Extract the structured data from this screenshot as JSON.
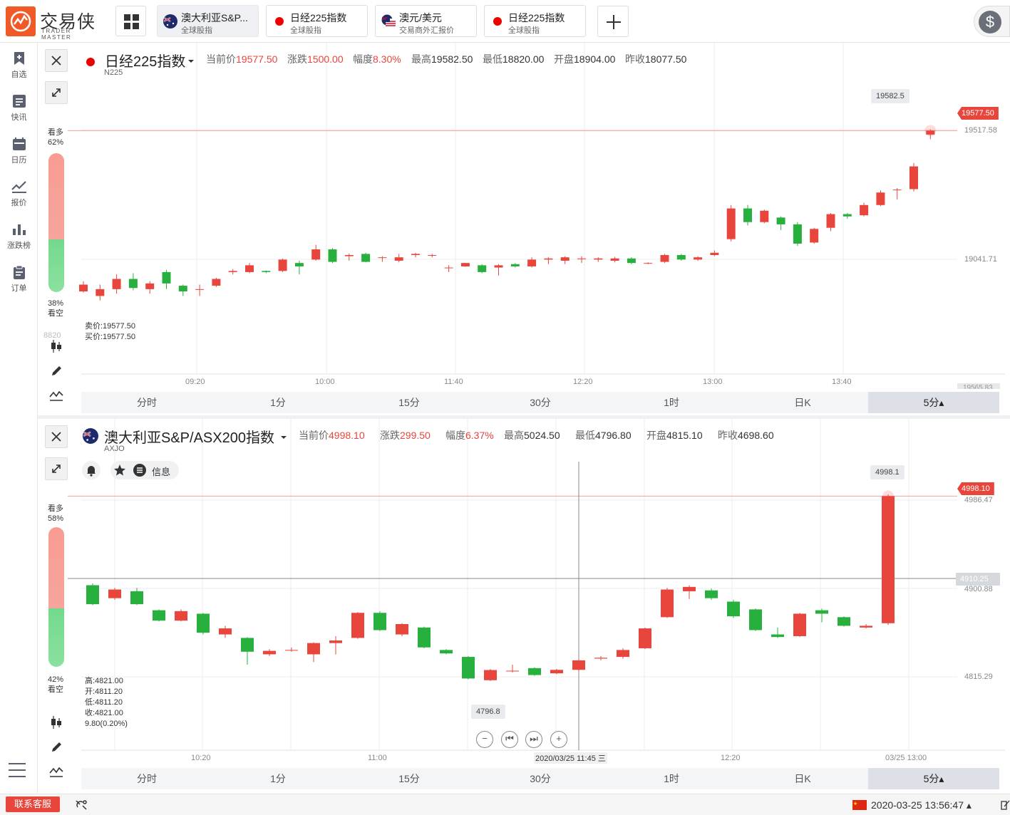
{
  "brand": {
    "name_cn": "交易侠",
    "name_en": "TRADER MASTER",
    "accent": "#f05a28"
  },
  "tabs": [
    {
      "name": "澳大利亚S&P...",
      "sub": "全球股指",
      "icon": "au-flag-icon",
      "active": true
    },
    {
      "name": "日经225指数",
      "sub": "全球股指",
      "icon": "red-dot-icon",
      "active": false
    },
    {
      "name": "澳元/美元",
      "sub": "交易商外汇报价",
      "icon": "au-us-flag-icon",
      "active": false
    },
    {
      "name": "日经225指数",
      "sub": "全球股指",
      "icon": "red-dot-icon",
      "active": false
    }
  ],
  "sidebar": {
    "items": [
      {
        "label": "自选",
        "icon": "bookmark-add-icon"
      },
      {
        "label": "快讯",
        "icon": "news-list-icon"
      },
      {
        "label": "日历",
        "icon": "calendar-icon"
      },
      {
        "label": "报价",
        "icon": "line-chart-icon"
      },
      {
        "label": "涨跌榜",
        "icon": "bar-chart-icon"
      },
      {
        "label": "订单",
        "icon": "clipboard-icon"
      }
    ]
  },
  "periods": [
    "分时",
    "1分",
    "15分",
    "30分",
    "1时",
    "日K",
    "5分▴"
  ],
  "panel1": {
    "name": "日经225指数",
    "code": "N225",
    "stats": [
      {
        "label": "当前价",
        "value": "19577.50",
        "red": true
      },
      {
        "label": "涨跌",
        "value": "1500.00",
        "red": true
      },
      {
        "label": "幅度",
        "value": "8.30%",
        "red": true
      },
      {
        "label": "最高",
        "value": "19582.50",
        "red": false
      },
      {
        "label": "最低",
        "value": "18820.00",
        "red": false
      },
      {
        "label": "开盘",
        "value": "18904.00",
        "red": false
      },
      {
        "label": "昨收",
        "value": "18077.50",
        "red": false
      }
    ],
    "bull_label": "看多",
    "bull_pct": "62%",
    "bull_value": 62,
    "bear_label": "看空",
    "bear_pct": "38%",
    "bear_value": 38,
    "quote": {
      "sell": "卖价:19577.50",
      "buy": "买价:19577.50"
    },
    "current_tag": "19577.50",
    "peak_label": "19582.5",
    "left_edge_label": "8820",
    "bottom_edge_label": "19565.83",
    "x_ticks": [
      "09:20",
      "10:00",
      "11:40",
      "12:20",
      "13:00",
      "13:40"
    ],
    "y_ticks": [
      "19517.58",
      "19041.71"
    ]
  },
  "panel2": {
    "name": "澳大利亚S&P/ASX200指数",
    "code": "AXJO",
    "stats": [
      {
        "label": "当前价",
        "value": "4998.10",
        "red": true
      },
      {
        "label": "涨跌",
        "value": "299.50",
        "red": true
      },
      {
        "label": "幅度",
        "value": "6.37%",
        "red": true
      },
      {
        "label": "最高",
        "value": "5024.50",
        "red": false
      },
      {
        "label": "最低",
        "value": "4796.80",
        "red": false
      },
      {
        "label": "开盘",
        "value": "4815.10",
        "red": false
      },
      {
        "label": "昨收",
        "value": "4698.60",
        "red": false
      }
    ],
    "info_label": "信息",
    "bull_label": "看多",
    "bull_pct": "58%",
    "bull_value": 58,
    "bear_label": "看空",
    "bear_pct": "42%",
    "bear_value": 42,
    "ohlc": [
      "高:4821.00",
      "开:4811.20",
      "低:4811.20",
      "收:4821.00",
      "9.80(0.20%)"
    ],
    "current_tag": "4998.10",
    "crosshair_tag": "4910.25",
    "peak_label": "4998.1",
    "low_label": "4796.8",
    "x_ticks": [
      "10:20",
      "11:00",
      "12:20",
      "03/25 13:00"
    ],
    "crosshair_time": "2020/03/25 11:45 三",
    "y_ticks": [
      "4986.47",
      "4900.88",
      "4815.29"
    ]
  },
  "status": {
    "contact": "联系客服",
    "datetime": "2020-03-25 13:56:47 ▴"
  },
  "colors": {
    "up": "#e8453c",
    "down": "#28b03e"
  },
  "chart_data": [
    {
      "type": "candlestick",
      "title": "日经225指数",
      "x": [
        "09:20",
        "10:00",
        "11:40",
        "12:20",
        "13:00",
        "13:40"
      ],
      "ylim": [
        18820,
        19660
      ],
      "candles": [
        {
          "o": 18870,
          "c": 18900,
          "h": 18915,
          "l": 18865
        },
        {
          "o": 18850,
          "c": 18880,
          "h": 18900,
          "l": 18830
        },
        {
          "o": 18880,
          "c": 18925,
          "h": 18945,
          "l": 18860
        },
        {
          "o": 18925,
          "c": 18885,
          "h": 18950,
          "l": 18875
        },
        {
          "o": 18880,
          "c": 18905,
          "h": 18915,
          "l": 18860
        },
        {
          "o": 18955,
          "c": 18905,
          "h": 18965,
          "l": 18880
        },
        {
          "o": 18895,
          "c": 18870,
          "h": 18900,
          "l": 18850
        },
        {
          "o": 18880,
          "c": 18880,
          "h": 18900,
          "l": 18850
        },
        {
          "o": 18895,
          "c": 18925,
          "h": 18930,
          "l": 18890
        },
        {
          "o": 18955,
          "c": 18960,
          "h": 18968,
          "l": 18945
        },
        {
          "o": 18955,
          "c": 18985,
          "h": 18995,
          "l": 18950
        },
        {
          "o": 18960,
          "c": 18955,
          "h": 18962,
          "l": 18950
        },
        {
          "o": 18960,
          "c": 19010,
          "h": 19015,
          "l": 18955
        },
        {
          "o": 18995,
          "c": 18980,
          "h": 19005,
          "l": 18945
        },
        {
          "o": 19010,
          "c": 19055,
          "h": 19075,
          "l": 19005
        },
        {
          "o": 19055,
          "c": 19000,
          "h": 19060,
          "l": 18995
        },
        {
          "o": 19025,
          "c": 19030,
          "h": 19037,
          "l": 19005
        },
        {
          "o": 19035,
          "c": 19000,
          "h": 19040,
          "l": 18998
        },
        {
          "o": 19020,
          "c": 19020,
          "h": 19025,
          "l": 19000
        },
        {
          "o": 19005,
          "c": 19020,
          "h": 19035,
          "l": 18998
        },
        {
          "o": 19030,
          "c": 19035,
          "h": 19040,
          "l": 19020
        },
        {
          "o": 19030,
          "c": 19030,
          "h": 19035,
          "l": 19020
        },
        {
          "o": 18975,
          "c": 18975,
          "h": 18985,
          "l": 18955
        },
        {
          "o": 18980,
          "c": 18995,
          "h": 18995,
          "l": 18978
        },
        {
          "o": 18985,
          "c": 18955,
          "h": 18990,
          "l": 18950
        },
        {
          "o": 18975,
          "c": 18985,
          "h": 18990,
          "l": 18940
        },
        {
          "o": 18990,
          "c": 18980,
          "h": 18995,
          "l": 18975
        },
        {
          "o": 18980,
          "c": 19010,
          "h": 19020,
          "l": 18975
        },
        {
          "o": 19010,
          "c": 19015,
          "h": 19020,
          "l": 18990
        },
        {
          "o": 19005,
          "c": 19020,
          "h": 19025,
          "l": 18990
        },
        {
          "o": 19015,
          "c": 19015,
          "h": 19025,
          "l": 18995
        },
        {
          "o": 19010,
          "c": 19015,
          "h": 19020,
          "l": 19000
        },
        {
          "o": 19005,
          "c": 19015,
          "h": 19022,
          "l": 18998
        },
        {
          "o": 19015,
          "c": 18995,
          "h": 19020,
          "l": 18990
        },
        {
          "o": 18995,
          "c": 18995,
          "h": 18998,
          "l": 18990
        },
        {
          "o": 19000,
          "c": 19030,
          "h": 19035,
          "l": 18995
        },
        {
          "o": 19030,
          "c": 19010,
          "h": 19035,
          "l": 19005
        },
        {
          "o": 19010,
          "c": 19020,
          "h": 19025,
          "l": 19005
        },
        {
          "o": 19030,
          "c": 19040,
          "h": 19050,
          "l": 19025
        },
        {
          "o": 19100,
          "c": 19235,
          "h": 19250,
          "l": 19090
        },
        {
          "o": 19235,
          "c": 19175,
          "h": 19250,
          "l": 19160
        },
        {
          "o": 19175,
          "c": 19225,
          "h": 19230,
          "l": 19170
        },
        {
          "o": 19195,
          "c": 19165,
          "h": 19200,
          "l": 19140
        },
        {
          "o": 19165,
          "c": 19080,
          "h": 19175,
          "l": 19070
        },
        {
          "o": 19085,
          "c": 19145,
          "h": 19150,
          "l": 19080
        },
        {
          "o": 19150,
          "c": 19210,
          "h": 19215,
          "l": 19135
        },
        {
          "o": 19210,
          "c": 19200,
          "h": 19215,
          "l": 19190
        },
        {
          "o": 19205,
          "c": 19250,
          "h": 19260,
          "l": 19200
        },
        {
          "o": 19250,
          "c": 19305,
          "h": 19315,
          "l": 19245
        },
        {
          "o": 19315,
          "c": 19318,
          "h": 19325,
          "l": 19275
        },
        {
          "o": 19320,
          "c": 19420,
          "h": 19435,
          "l": 19310
        },
        {
          "o": 19560,
          "c": 19577.5,
          "h": 19582.5,
          "l": 19540
        }
      ]
    },
    {
      "type": "candlestick",
      "title": "澳大利亚S&P/ASX200指数",
      "x": [
        "10:20",
        "11:00",
        "12:20",
        "03/25 13:00"
      ],
      "ylim": [
        4770,
        5010
      ],
      "candles": [
        {
          "o": 4895,
          "c": 4873,
          "h": 4897,
          "l": 4872
        },
        {
          "o": 4880,
          "c": 4890,
          "h": 4892,
          "l": 4878
        },
        {
          "o": 4888,
          "c": 4873,
          "h": 4892,
          "l": 4872
        },
        {
          "o": 4866,
          "c": 4854,
          "h": 4867,
          "l": 4853
        },
        {
          "o": 4854,
          "c": 4865,
          "h": 4867,
          "l": 4853
        },
        {
          "o": 4862,
          "c": 4840,
          "h": 4863,
          "l": 4838
        },
        {
          "o": 4838,
          "c": 4845,
          "h": 4848,
          "l": 4834
        },
        {
          "o": 4834,
          "c": 4818,
          "h": 4835,
          "l": 4803
        },
        {
          "o": 4815,
          "c": 4819,
          "h": 4821,
          "l": 4813
        },
        {
          "o": 4820,
          "c": 4820,
          "h": 4823,
          "l": 4818
        },
        {
          "o": 4815,
          "c": 4828,
          "h": 4829,
          "l": 4806
        },
        {
          "o": 4828,
          "c": 4831,
          "h": 4836,
          "l": 4815
        },
        {
          "o": 4834,
          "c": 4863,
          "h": 4864,
          "l": 4833
        },
        {
          "o": 4863,
          "c": 4843,
          "h": 4865,
          "l": 4842
        },
        {
          "o": 4838,
          "c": 4850,
          "h": 4851,
          "l": 4836
        },
        {
          "o": 4846,
          "c": 4823,
          "h": 4847,
          "l": 4822
        },
        {
          "o": 4820,
          "c": 4816,
          "h": 4821,
          "l": 4815
        },
        {
          "o": 4812,
          "c": 4787,
          "h": 4813,
          "l": 4786
        },
        {
          "o": 4785,
          "c": 4796.8,
          "h": 4798,
          "l": 4784
        },
        {
          "o": 4796,
          "c": 4796,
          "h": 4803,
          "l": 4794
        },
        {
          "o": 4799,
          "c": 4791,
          "h": 4800,
          "l": 4790
        },
        {
          "o": 4793,
          "c": 4797,
          "h": 4798,
          "l": 4792
        },
        {
          "o": 4797,
          "c": 4808,
          "h": 4809,
          "l": 4796
        },
        {
          "o": 4810,
          "c": 4811,
          "h": 4813,
          "l": 4808
        },
        {
          "o": 4812,
          "c": 4820,
          "h": 4822,
          "l": 4810
        },
        {
          "o": 4822,
          "c": 4845,
          "h": 4846,
          "l": 4821
        },
        {
          "o": 4858,
          "c": 4890,
          "h": 4892,
          "l": 4857
        },
        {
          "o": 4888,
          "c": 4893,
          "h": 4895,
          "l": 4879
        },
        {
          "o": 4889,
          "c": 4880,
          "h": 4891,
          "l": 4878
        },
        {
          "o": 4876,
          "c": 4859,
          "h": 4878,
          "l": 4857
        },
        {
          "o": 4867,
          "c": 4843,
          "h": 4868,
          "l": 4842
        },
        {
          "o": 4838,
          "c": 4835,
          "h": 4846,
          "l": 4834
        },
        {
          "o": 4836,
          "c": 4862,
          "h": 4863,
          "l": 4835
        },
        {
          "o": 4866,
          "c": 4862,
          "h": 4868,
          "l": 4852
        },
        {
          "o": 4858,
          "c": 4848,
          "h": 4859,
          "l": 4847
        },
        {
          "o": 4846,
          "c": 4848,
          "h": 4850,
          "l": 4845
        },
        {
          "o": 4851,
          "c": 4998.1,
          "h": 5000,
          "l": 4849
        }
      ]
    }
  ]
}
